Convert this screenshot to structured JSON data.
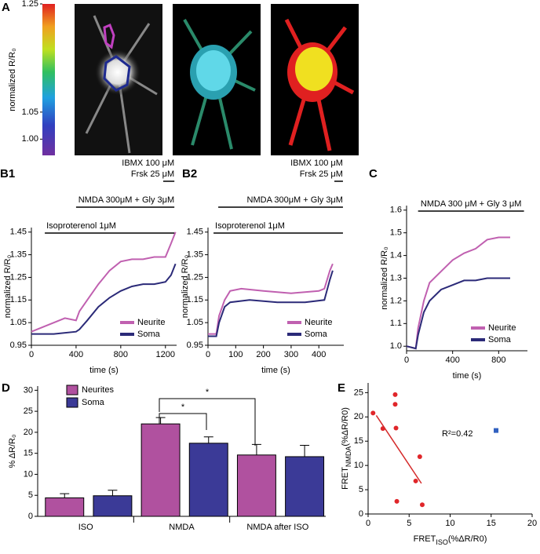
{
  "chart_data": [
    {
      "type": "image",
      "panel": "A",
      "y_label": "normalized R/R₀",
      "ylim": [
        0.97,
        1.25
      ],
      "yticks": [
        1.25,
        1.05,
        {
          "value": 1,
          "label": "1.00"
        }
      ]
    },
    {
      "type": "line",
      "panel": "B1",
      "x_label": "time (s)",
      "y_label": "normalized R/R₀",
      "xlim": [
        0,
        1300
      ],
      "xticks": [
        0,
        400,
        800,
        1200
      ],
      "ylim": [
        0.95,
        1.47
      ],
      "yticks": [
        0.95,
        1.05,
        1.15,
        1.25,
        1.35,
        1.45
      ],
      "legend": "lower right",
      "treatments": [
        {
          "labels": [
            "Isoproterenol 1μM"
          ],
          "start": 120,
          "end": 1280
        },
        {
          "labels": [
            "NMDA 300μM + Gly 3μM"
          ],
          "start": 400,
          "end": 1280
        },
        {
          "labels": [
            "IBMX 100 μM",
            "Frsk 25 μM"
          ],
          "start": 1180,
          "end": 1280
        }
      ],
      "series": [
        {
          "name": "Neurite",
          "color": "#c060b0",
          "x": [
            0,
            100,
            200,
            300,
            400,
            430,
            500,
            600,
            700,
            800,
            900,
            1000,
            1100,
            1200,
            1250,
            1290
          ],
          "values": [
            1.01,
            1.03,
            1.05,
            1.07,
            1.06,
            1.1,
            1.15,
            1.22,
            1.28,
            1.32,
            1.33,
            1.33,
            1.34,
            1.34,
            1.4,
            1.45
          ]
        },
        {
          "name": "Soma",
          "color": "#2b2a78",
          "x": [
            0,
            200,
            400,
            430,
            500,
            600,
            700,
            800,
            900,
            1000,
            1100,
            1200,
            1250,
            1290
          ],
          "values": [
            1.0,
            1.0,
            1.01,
            1.02,
            1.06,
            1.12,
            1.16,
            1.19,
            1.21,
            1.22,
            1.22,
            1.23,
            1.26,
            1.31
          ]
        }
      ]
    },
    {
      "type": "line",
      "panel": "B2",
      "x_label": "time (s)",
      "y_label": "normalized R/R₀",
      "xlim": [
        0,
        490
      ],
      "xticks": [
        0,
        100,
        200,
        300,
        400
      ],
      "ylim": [
        0.95,
        1.47
      ],
      "yticks": [
        0.95,
        1.05,
        1.15,
        1.25,
        1.35,
        1.45
      ],
      "legend": "lower right",
      "treatments": [
        {
          "labels": [
            "Isoproterenol 1μM"
          ],
          "start": 20,
          "end": 487
        },
        {
          "labels": [
            "NMDA 300μM + Gly 3μM"
          ],
          "start": 37,
          "end": 487
        },
        {
          "labels": [
            "IBMX 100 μM",
            "Frsk 25 μM"
          ],
          "start": 456,
          "end": 487
        }
      ],
      "series": [
        {
          "name": "Neurite",
          "color": "#c060b0",
          "x": [
            0,
            30,
            40,
            60,
            80,
            120,
            200,
            300,
            400,
            420,
            440,
            450
          ],
          "values": [
            1.0,
            1.0,
            1.08,
            1.15,
            1.19,
            1.2,
            1.19,
            1.18,
            1.19,
            1.2,
            1.28,
            1.31
          ]
        },
        {
          "name": "Soma",
          "color": "#2b2a78",
          "x": [
            0,
            30,
            40,
            60,
            80,
            150,
            250,
            350,
            420,
            440,
            450
          ],
          "values": [
            0.99,
            0.99,
            1.05,
            1.12,
            1.14,
            1.15,
            1.14,
            1.14,
            1.15,
            1.24,
            1.28
          ]
        }
      ]
    },
    {
      "type": "line",
      "panel": "C",
      "x_label": "time (s)",
      "y_label": "normalized R/R₀",
      "xlim": [
        0,
        1050
      ],
      "xticks": [
        0,
        400,
        800
      ],
      "ylim": [
        0.98,
        1.62
      ],
      "yticks": [
        {
          "value": 1,
          "label": "1.0"
        },
        1.1,
        1.2,
        1.3,
        1.4,
        1.5,
        1.6
      ],
      "legend": "lower right",
      "treatments": [
        {
          "labels": [
            "NMDA 300  μM + Gly 3 μM"
          ],
          "start": 100,
          "end": 1020
        }
      ],
      "series": [
        {
          "name": "Neurite",
          "color": "#c060b0",
          "x": [
            0,
            80,
            100,
            150,
            200,
            300,
            400,
            500,
            600,
            700,
            800,
            900
          ],
          "values": [
            1.0,
            0.99,
            1.08,
            1.2,
            1.28,
            1.33,
            1.38,
            1.41,
            1.43,
            1.47,
            1.48,
            1.48
          ]
        },
        {
          "name": "Soma",
          "color": "#2b2a78",
          "x": [
            0,
            80,
            100,
            150,
            200,
            300,
            400,
            500,
            600,
            700,
            800,
            900
          ],
          "values": [
            1.0,
            0.99,
            1.05,
            1.15,
            1.2,
            1.25,
            1.27,
            1.29,
            1.29,
            1.3,
            1.3,
            1.3
          ]
        }
      ]
    },
    {
      "type": "bar",
      "panel": "D",
      "y_label": "% ΔR/R₀",
      "categories": [
        "ISO",
        "NMDA",
        "NMDA after ISO"
      ],
      "ylim": [
        0,
        31
      ],
      "yticks": [
        0,
        5,
        10,
        15,
        20,
        25,
        30
      ],
      "legend": "upper left",
      "annotations": [
        "*",
        "*"
      ],
      "series": [
        {
          "name": "Neurites",
          "color": "#b0519f",
          "values": [
            4.4,
            22.0,
            14.6
          ],
          "errors": [
            1.0,
            1.5,
            2.5
          ]
        },
        {
          "name": "Soma",
          "color": "#3b3a97",
          "values": [
            4.9,
            17.4,
            14.2
          ],
          "errors": [
            1.3,
            1.5,
            2.7
          ]
        }
      ]
    },
    {
      "type": "scatter",
      "panel": "E",
      "x_label": [
        "FRET",
        "ISO",
        "(%ΔR/R0)"
      ],
      "y_label": [
        "FRET",
        "NMDA",
        "(%ΔR/R0)"
      ],
      "xlim": [
        0,
        20
      ],
      "xticks": [
        0,
        5,
        10,
        15,
        20
      ],
      "ylim": [
        0,
        27
      ],
      "yticks": [
        0,
        5,
        10,
        15,
        20,
        25
      ],
      "annotation": "R²=0.42",
      "series": [
        {
          "color": "#e0262a",
          "marker": "circle",
          "x": [
            0.6,
            1.8,
            3.3,
            3.3,
            3.4,
            5.8,
            6.3,
            3.5,
            6.6
          ],
          "values": [
            20.8,
            17.6,
            24.6,
            22.6,
            17.7,
            6.8,
            11.8,
            2.6,
            1.9
          ]
        },
        {
          "color": "#3060c0",
          "marker": "square",
          "x": [
            15.6
          ],
          "values": [
            17.2
          ]
        }
      ],
      "fit": {
        "color": "#d42a2a",
        "x": [
          1,
          6.5
        ],
        "values": [
          20.3,
          6.3
        ]
      }
    }
  ]
}
